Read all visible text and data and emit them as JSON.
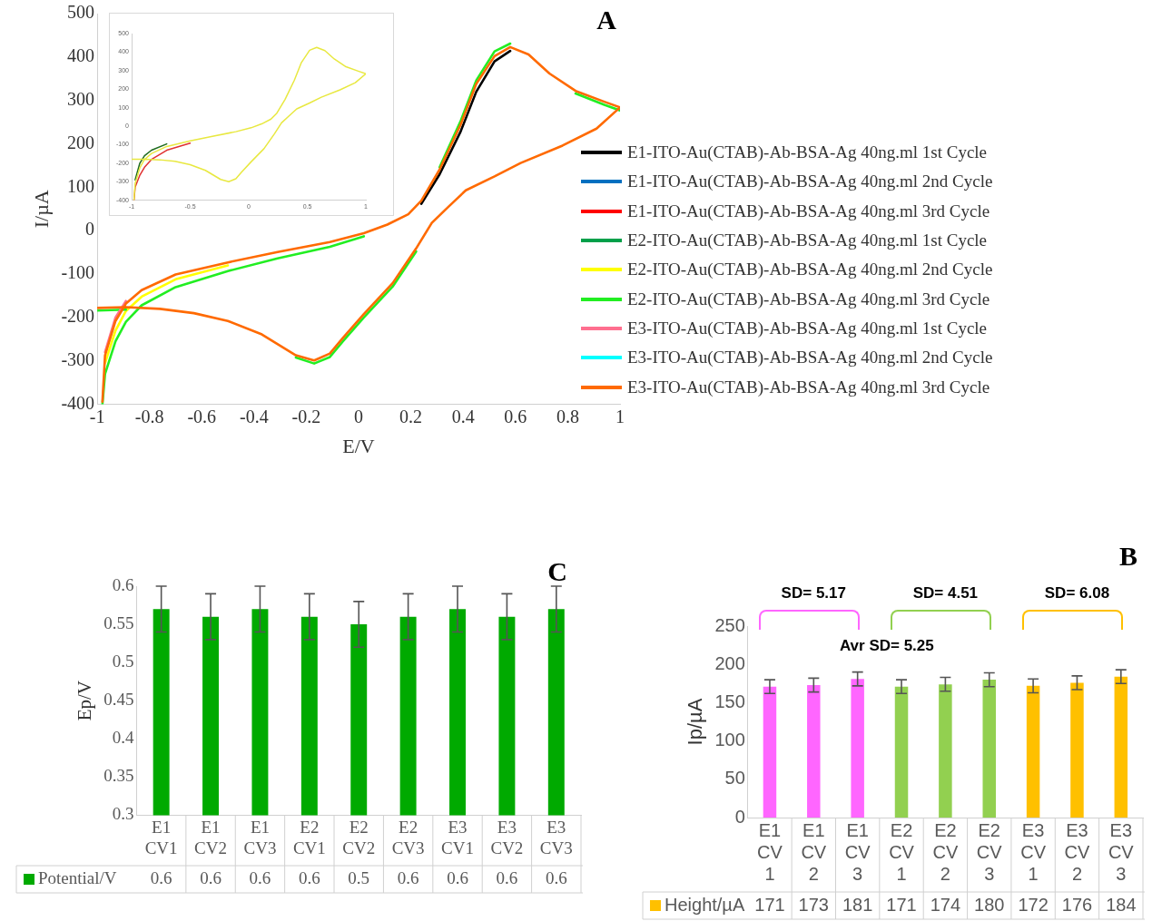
{
  "chart_data": [
    {
      "type": "line",
      "title": "A",
      "xlabel": "E/V",
      "ylabel": "I/µA",
      "legend": "right",
      "xlim": [
        -1,
        1
      ],
      "xticks": [
        -1,
        -0.8,
        -0.6,
        -0.4,
        -0.2,
        0,
        0.2,
        0.4,
        0.6,
        0.8,
        1
      ],
      "ylim": [
        -400,
        500
      ],
      "yticks": [
        -400,
        -300,
        -200,
        -100,
        0,
        100,
        200,
        300,
        400,
        500
      ],
      "x": [
        -0.98,
        -0.97,
        -0.93,
        -0.89,
        -0.83,
        -0.7,
        -0.5,
        -0.31,
        -0.11,
        0.02,
        0.11,
        0.19,
        0.24,
        0.31,
        0.39,
        0.45,
        0.52,
        0.58,
        0.65,
        0.73,
        0.83,
        0.94,
        1,
        0.91,
        0.78,
        0.62,
        0.52,
        0.41,
        0.34,
        0.28,
        0.22,
        0.13,
        0.02,
        -0.06,
        -0.11,
        -0.17,
        -0.24,
        -0.37,
        -0.5,
        -0.63,
        -0.76,
        -0.89,
        -1
      ],
      "series": [
        {
          "name": "E1-ITO-Au(CTAB)-Ab-BSA-Ag 40ng.ml 1st Cycle",
          "color": "#000000",
          "values": [
            null,
            null,
            null,
            null,
            null,
            null,
            null,
            null,
            null,
            null,
            null,
            null,
            62,
            130,
            228,
            320,
            390,
            414,
            null,
            null,
            null,
            null,
            null,
            null,
            null,
            null,
            null,
            null,
            null,
            null,
            null,
            null,
            null,
            null,
            null,
            null,
            null,
            null,
            null,
            null,
            null,
            null,
            null
          ]
        },
        {
          "name": "E1-ITO-Au(CTAB)-Ab-BSA-Ag 40ng.ml 2nd Cycle",
          "color": "#0070c0",
          "values": [
            null,
            null,
            null,
            null,
            null,
            null,
            null,
            null,
            null,
            null,
            null,
            null,
            null,
            null,
            null,
            null,
            null,
            null,
            null,
            null,
            null,
            null,
            null,
            null,
            null,
            null,
            null,
            null,
            null,
            null,
            null,
            null,
            null,
            null,
            null,
            null,
            null,
            null,
            null,
            null,
            null,
            null,
            null
          ]
        },
        {
          "name": "E1-ITO-Au(CTAB)-Ab-BSA-Ag 40ng.ml 3rd Cycle",
          "color": "#ff0000",
          "values": [
            null,
            null,
            null,
            null,
            null,
            null,
            null,
            null,
            null,
            null,
            null,
            null,
            null,
            null,
            null,
            null,
            null,
            null,
            null,
            null,
            null,
            null,
            null,
            null,
            null,
            null,
            null,
            null,
            null,
            null,
            null,
            null,
            null,
            null,
            null,
            null,
            null,
            null,
            null,
            null,
            null,
            null,
            null
          ]
        },
        {
          "name": "E2-ITO-Au(CTAB)-Ab-BSA-Ag 40ng.ml 1st Cycle",
          "color": "#00a04a",
          "values": [
            null,
            null,
            null,
            null,
            null,
            null,
            null,
            null,
            null,
            null,
            null,
            null,
            null,
            null,
            null,
            null,
            null,
            null,
            null,
            null,
            null,
            null,
            null,
            null,
            null,
            null,
            null,
            null,
            null,
            null,
            null,
            null,
            null,
            null,
            null,
            null,
            null,
            null,
            null,
            null,
            null,
            null,
            null
          ]
        },
        {
          "name": "E2-ITO-Au(CTAB)-Ab-BSA-Ag 40ng.ml 2nd Cycle",
          "color": "#ffff00",
          "values": [
            null,
            -305,
            -230,
            -185,
            -152,
            -112,
            -80,
            null,
            null,
            null,
            null,
            null,
            null,
            null,
            null,
            null,
            null,
            null,
            null,
            null,
            null,
            null,
            null,
            null,
            null,
            null,
            null,
            null,
            null,
            null,
            null,
            null,
            null,
            null,
            null,
            null,
            null,
            null,
            null,
            null,
            null,
            null,
            null
          ]
        },
        {
          "name": "E2-ITO-Au(CTAB)-Ab-BSA-Ag 40ng.ml 3rd Cycle",
          "color": "#22ee22",
          "values": [
            -400,
            -330,
            -255,
            -210,
            -172,
            -130,
            -93,
            -64,
            -37,
            -13,
            null,
            null,
            null,
            146,
            252,
            346,
            413,
            431,
            null,
            null,
            316,
            290,
            277,
            null,
            null,
            null,
            null,
            null,
            null,
            null,
            -48,
            -129,
            -200,
            -255,
            -291,
            -306,
            -292,
            null,
            null,
            null,
            null,
            -182,
            -184
          ]
        },
        {
          "name": "E3-ITO-Au(CTAB)-Ab-BSA-Ag 40ng.ml 1st Cycle",
          "color": "#ff6f8f",
          "values": [
            null,
            -280,
            -200,
            -162,
            null,
            null,
            null,
            null,
            null,
            null,
            null,
            null,
            null,
            null,
            null,
            null,
            null,
            null,
            null,
            null,
            null,
            null,
            null,
            null,
            null,
            null,
            null,
            null,
            null,
            null,
            null,
            null,
            null,
            null,
            null,
            null,
            null,
            null,
            null,
            null,
            null,
            null,
            null
          ]
        },
        {
          "name": "E3-ITO-Au(CTAB)-Ab-BSA-Ag 40ng.ml 2nd Cycle",
          "color": "#00ffff",
          "values": [
            null,
            null,
            null,
            null,
            null,
            null,
            null,
            null,
            null,
            null,
            null,
            null,
            null,
            null,
            null,
            null,
            null,
            null,
            null,
            null,
            null,
            null,
            null,
            null,
            null,
            null,
            null,
            null,
            null,
            null,
            null,
            null,
            null,
            null,
            null,
            null,
            null,
            null,
            null,
            null,
            null,
            null,
            null
          ]
        },
        {
          "name": "E3-ITO-Au(CTAB)-Ab-BSA-Ag 40ng.ml 3rd Cycle",
          "color": "#ff6a00",
          "values": [
            -394,
            -287,
            -208,
            -168,
            -137,
            -101,
            -73,
            -49,
            -26,
            -6,
            14,
            38,
            69,
            141,
            244,
            338,
            402,
            423,
            406,
            362,
            322,
            297,
            284,
            235,
            196,
            156,
            125,
            93,
            53,
            18,
            -41,
            -121,
            -192,
            -247,
            -283,
            -299,
            -287,
            -239,
            -208,
            -190,
            -180,
            -176,
            -178
          ]
        }
      ]
    },
    {
      "type": "line",
      "xlim": [
        -1,
        1
      ],
      "xticks": [
        -1,
        -0.5,
        0,
        0.5,
        1
      ],
      "ylim": [
        -400,
        500
      ],
      "yticks": [
        -400,
        -300,
        -200,
        -100,
        0,
        100,
        200,
        300,
        400,
        500
      ],
      "x": [
        -0.98,
        -0.97,
        -0.93,
        -0.89,
        -0.83,
        -0.7,
        -0.5,
        -0.31,
        -0.11,
        0.02,
        0.11,
        0.19,
        0.24,
        0.31,
        0.39,
        0.45,
        0.52,
        0.58,
        0.65,
        0.73,
        0.83,
        0.94,
        1,
        0.91,
        0.78,
        0.62,
        0.52,
        0.41,
        0.34,
        0.28,
        0.22,
        0.13,
        0.02,
        -0.06,
        -0.11,
        -0.17,
        -0.24,
        -0.37,
        -0.5,
        -0.63,
        -0.76,
        -0.89,
        -1
      ],
      "series": [
        {
          "color": "#e03030",
          "values": [
            -400,
            -330,
            -265,
            -222,
            -180,
            -130,
            -92,
            null,
            null,
            null,
            null,
            null,
            null,
            null,
            null,
            null,
            null,
            null,
            null,
            null,
            null,
            null,
            null,
            null,
            null,
            null,
            null,
            null,
            null,
            null,
            null,
            null,
            null,
            null,
            null,
            null,
            null,
            null,
            null,
            null,
            null,
            null,
            null
          ]
        },
        {
          "color": "#1e6b1e",
          "values": [
            null,
            -290,
            -200,
            -160,
            -130,
            -96,
            null,
            null,
            null,
            null,
            null,
            null,
            null,
            null,
            null,
            null,
            null,
            null,
            null,
            null,
            null,
            null,
            null,
            null,
            null,
            null,
            null,
            null,
            null,
            null,
            null,
            null,
            null,
            null,
            null,
            null,
            null,
            null,
            null,
            null,
            null,
            null,
            null
          ]
        },
        {
          "color": "#e8e840",
          "values": [
            -400,
            -310,
            -225,
            -180,
            -148,
            -110,
            -80,
            -55,
            -30,
            -9,
            12,
            38,
            70,
            144,
            249,
            344,
            410,
            425,
            408,
            363,
            321,
            296,
            283,
            235,
            196,
            156,
            125,
            93,
            53,
            18,
            -41,
            -122,
            -193,
            -248,
            -284,
            -300,
            -288,
            -239,
            -208,
            -190,
            -182,
            -179,
            -179
          ]
        }
      ]
    },
    {
      "type": "bar",
      "title": "C",
      "ylabel": "Ep/V",
      "legend": "bottom",
      "categories": [
        "E1 CV1",
        "E1 CV2",
        "E1 CV3",
        "E2 CV1",
        "E2 CV2",
        "E2 CV3",
        "E3 CV1",
        "E3 CV2",
        "E3 CV3"
      ],
      "ylim": [
        0.3,
        0.6
      ],
      "yticks": [
        0.3,
        0.35,
        0.4,
        0.45,
        0.5,
        0.55,
        0.6
      ],
      "series": [
        {
          "name": "Potential/V",
          "color": "#00aa00",
          "values": [
            0.57,
            0.56,
            0.57,
            0.56,
            0.55,
            0.56,
            0.57,
            0.56,
            0.57
          ],
          "errors": [
            0.03,
            0.03,
            0.03,
            0.03,
            0.03,
            0.03,
            0.03,
            0.03,
            0.03
          ],
          "value_labels": [
            "0.6",
            "0.6",
            "0.6",
            "0.6",
            "0.5",
            "0.6",
            "0.6",
            "0.6",
            "0.6"
          ]
        }
      ]
    },
    {
      "type": "bar",
      "title": "B",
      "ylabel": "Ip/µA",
      "legend": "bottom",
      "data_labels": true,
      "categories": [
        "E1 CV 1",
        "E1 CV 2",
        "E1 CV 3",
        "E2 CV 1",
        "E2 CV 2",
        "E2 CV 3",
        "E3 CV 1",
        "E3 CV 2",
        "E3 CV 3"
      ],
      "ylim": [
        0,
        250
      ],
      "yticks": [
        0,
        50,
        100,
        150,
        200,
        250
      ],
      "annotations": [
        "SD= 5.17",
        "SD= 4.51",
        "SD= 6.08",
        "Avr SD= 5.25"
      ],
      "series": [
        {
          "name": "Height/µA",
          "color": "#ffc000",
          "colors": [
            "#ff66ff",
            "#ff66ff",
            "#ff66ff",
            "#92d050",
            "#92d050",
            "#92d050",
            "#ffc000",
            "#ffc000",
            "#ffc000"
          ],
          "values": [
            171,
            173,
            181,
            171,
            174,
            180,
            172,
            176,
            184
          ],
          "errors": [
            9,
            9,
            9,
            9,
            9,
            9,
            9,
            9,
            9
          ]
        }
      ]
    }
  ]
}
